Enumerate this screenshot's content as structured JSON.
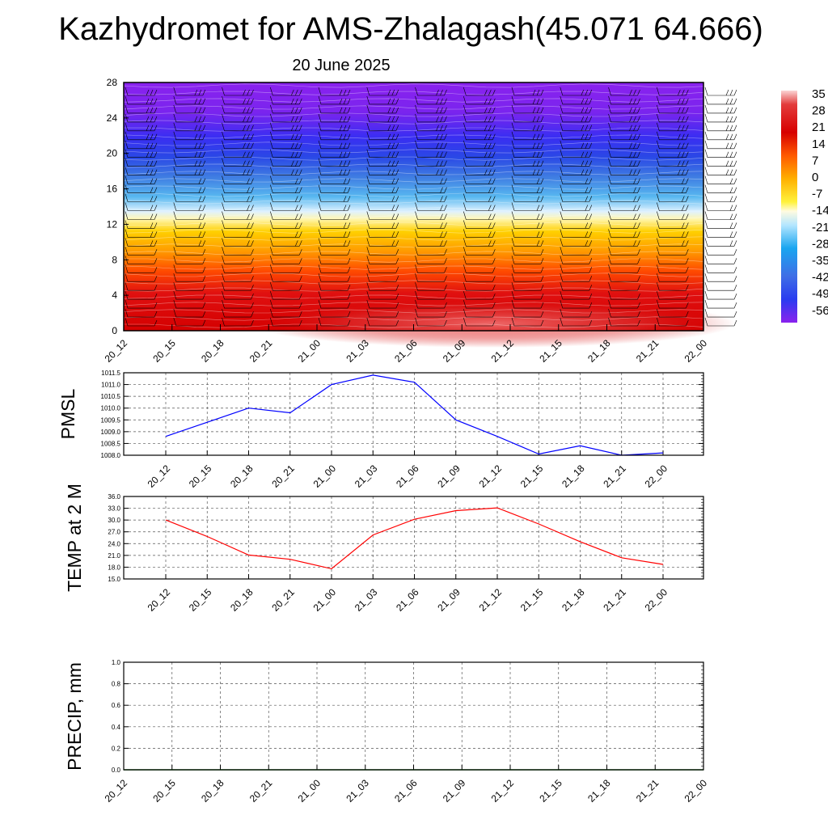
{
  "title": "Kazhydromet for AMS-Zhalagash(45.071 64.666)",
  "subtitle": "20 June 2025",
  "colors": {
    "pmsl_line": "#0000ff",
    "temp_line": "#ff0000",
    "precip_line": "#1a7a1a",
    "wind_barb": "#000000"
  },
  "chart_data": [
    {
      "type": "heatmap",
      "name": "cross-section",
      "x": [
        "20_12",
        "20_15",
        "20_18",
        "20_21",
        "21_00",
        "21_03",
        "21_06",
        "21_09",
        "21_12",
        "21_15",
        "21_18",
        "21_21",
        "22_00"
      ],
      "y_ticks": [
        0,
        4,
        8,
        12,
        16,
        20,
        24,
        28
      ],
      "ylim": [
        0,
        28
      ],
      "colorbar": {
        "labels": [
          "35",
          "28",
          "21",
          "14",
          "7",
          "0",
          "-7",
          "-14",
          "-21",
          "-28",
          "-35",
          "-42",
          "-49",
          "-56"
        ],
        "range": [
          -60,
          38
        ]
      },
      "profile_y": [
        0,
        2,
        4,
        6,
        8,
        10,
        12,
        13,
        14,
        15,
        16,
        17,
        18,
        19,
        20,
        21,
        22,
        23,
        24,
        26,
        28
      ],
      "profile_values": [
        28,
        27,
        22,
        16,
        11,
        5,
        -3,
        -8,
        -16,
        -22,
        -30,
        -38,
        -45,
        -50,
        -54,
        -55,
        -53,
        -54,
        -56,
        -58,
        -59
      ],
      "wind_barbs": "present at every time column and level"
    },
    {
      "type": "line",
      "name": "pmsl",
      "ylabel": "PMSL",
      "ylim": [
        1008.0,
        1011.5
      ],
      "y_ticks": [
        "1008.0",
        "1008.5",
        "1009.0",
        "1009.5",
        "1010.0",
        "1010.5",
        "1011.0",
        "1011.5"
      ],
      "x": [
        "20_12",
        "20_15",
        "20_18",
        "20_21",
        "21_00",
        "21_03",
        "21_06",
        "21_09",
        "21_12",
        "21_15",
        "21_18",
        "21_21",
        "22_00"
      ],
      "values": [
        1008.8,
        1009.4,
        1010.0,
        1009.8,
        1011.0,
        1011.4,
        1011.1,
        1009.5,
        1008.8,
        1008.05,
        1008.4,
        1008.0,
        1008.1
      ],
      "grid": true
    },
    {
      "type": "line",
      "name": "temp",
      "ylabel": "TEMP at 2 M",
      "ylim": [
        15.0,
        36.0
      ],
      "y_ticks": [
        "15.0",
        "18.0",
        "21.0",
        "24.0",
        "27.0",
        "30.0",
        "33.0",
        "36.0"
      ],
      "x": [
        "20_12",
        "20_15",
        "20_18",
        "20_21",
        "21_00",
        "21_03",
        "21_06",
        "21_09",
        "21_12",
        "21_15",
        "21_18",
        "21_21",
        "22_00"
      ],
      "values": [
        30.0,
        25.8,
        21.1,
        20.0,
        17.6,
        26.2,
        30.2,
        32.4,
        33.1,
        29.0,
        24.5,
        20.4,
        18.7
      ],
      "grid": true
    },
    {
      "type": "line",
      "name": "precip",
      "ylabel": "PRECIP, mm",
      "ylim": [
        0.0,
        1.0
      ],
      "y_ticks": [
        "0.0",
        "0.2",
        "0.4",
        "0.6",
        "0.8",
        "1.0"
      ],
      "x": [
        "20_12",
        "20_15",
        "20_18",
        "20_21",
        "21_00",
        "21_03",
        "21_06",
        "21_09",
        "21_12",
        "21_15",
        "21_18",
        "21_21",
        "22_00"
      ],
      "values": [
        0,
        0,
        0,
        0,
        0,
        0,
        0,
        0,
        0,
        0,
        0,
        0,
        0
      ],
      "grid": true
    }
  ]
}
